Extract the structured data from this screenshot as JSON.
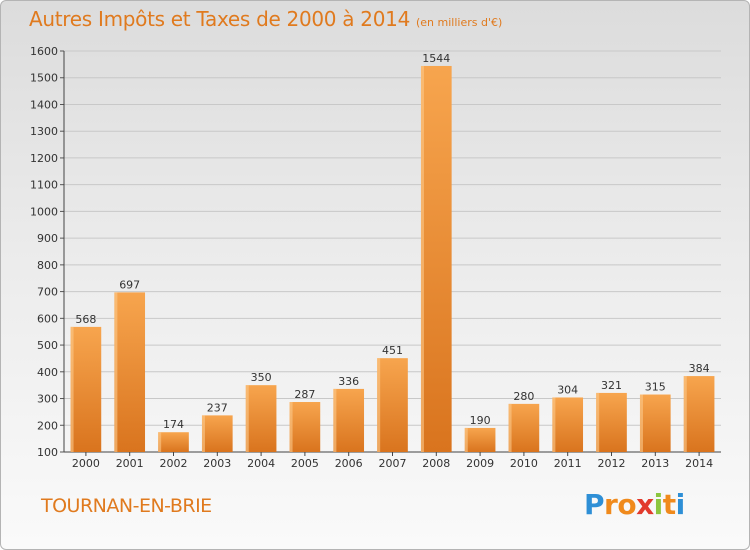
{
  "header": {
    "title": "Autres Impôts et Taxes de 2000 à 2014",
    "subtitle": "(en milliers d'€)"
  },
  "footer": {
    "city": "TOURNAN-EN-BRIE",
    "logo_text": "Proxiti"
  },
  "colors": {
    "title": "#e07a1e",
    "bar_light": "#f7a54e",
    "bar_dark": "#d9741e",
    "grid": "#c8c8c8",
    "logo_letters": [
      "#2e8fd6",
      "#f08a1c",
      "#f08a1c",
      "#e23a2c",
      "#8cc63f",
      "#f08a1c",
      "#2e8fd6"
    ]
  },
  "chart_data": {
    "type": "bar",
    "title": "Autres Impôts et Taxes de 2000 à 2014",
    "subtitle": "(en milliers d'€)",
    "categories": [
      "2000",
      "2001",
      "2002",
      "2003",
      "2004",
      "2005",
      "2006",
      "2007",
      "2008",
      "2009",
      "2010",
      "2011",
      "2012",
      "2013",
      "2014"
    ],
    "values": [
      568,
      697,
      174,
      237,
      350,
      287,
      336,
      451,
      1544,
      190,
      280,
      304,
      321,
      315,
      384
    ],
    "ylim": [
      100,
      1600
    ],
    "yticks": [
      100,
      200,
      300,
      400,
      500,
      600,
      700,
      800,
      900,
      1000,
      1100,
      1200,
      1300,
      1400,
      1500,
      1600
    ],
    "grid": true,
    "data_labels": true
  }
}
